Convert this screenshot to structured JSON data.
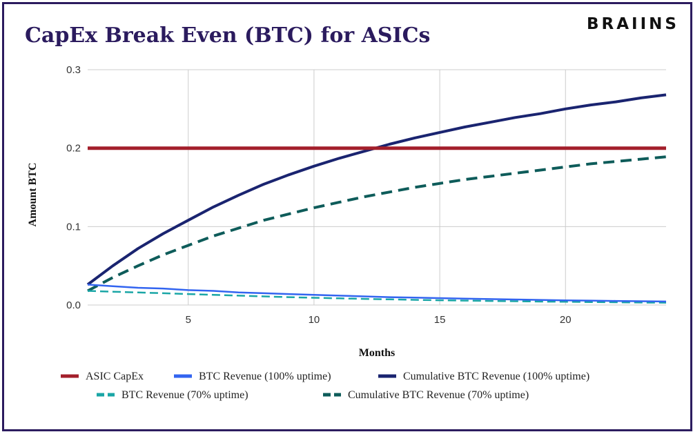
{
  "header": {
    "title": "CapEx Break Even (BTC) for ASICs",
    "logo_text": "BRAIINS"
  },
  "colors": {
    "frame": "#2b1b5e",
    "title": "#2b1b5e",
    "grid": "#cccccc"
  },
  "chart_data": {
    "type": "line",
    "title": "CapEx Break Even (BTC) for ASICs",
    "xlabel": "Months",
    "ylabel": "Amount BTC",
    "xlim": [
      1,
      24
    ],
    "ylim": [
      0,
      0.3
    ],
    "x_ticks": [
      5,
      10,
      15,
      20
    ],
    "y_ticks": [
      0.0,
      0.1,
      0.2,
      0.3
    ],
    "y_tick_labels": [
      "0.0",
      "0.1",
      "0.2",
      "0.3"
    ],
    "grid": true,
    "legend_position": "bottom",
    "x": [
      1,
      2,
      3,
      4,
      5,
      6,
      7,
      8,
      9,
      10,
      11,
      12,
      13,
      14,
      15,
      16,
      17,
      18,
      19,
      20,
      21,
      22,
      23,
      24
    ],
    "series": [
      {
        "name": "ASIC CapEx",
        "color": "#a31f2b",
        "dash": "solid",
        "values": [
          0.2,
          0.2,
          0.2,
          0.2,
          0.2,
          0.2,
          0.2,
          0.2,
          0.2,
          0.2,
          0.2,
          0.2,
          0.2,
          0.2,
          0.2,
          0.2,
          0.2,
          0.2,
          0.2,
          0.2,
          0.2,
          0.2,
          0.2,
          0.2
        ]
      },
      {
        "name": "BTC Revenue (100% uptime)",
        "color": "#3264f0",
        "dash": "solid",
        "values": [
          0.026,
          0.024,
          0.022,
          0.021,
          0.019,
          0.018,
          0.016,
          0.015,
          0.014,
          0.013,
          0.012,
          0.011,
          0.01,
          0.0095,
          0.0088,
          0.0082,
          0.0076,
          0.007,
          0.0065,
          0.006,
          0.0056,
          0.0052,
          0.0048,
          0.0045
        ]
      },
      {
        "name": "Cumulative BTC Revenue (100% uptime)",
        "color": "#1a2470",
        "dash": "solid",
        "values": [
          0.026,
          0.05,
          0.072,
          0.091,
          0.108,
          0.125,
          0.14,
          0.154,
          0.166,
          0.177,
          0.187,
          0.196,
          0.205,
          0.213,
          0.22,
          0.227,
          0.233,
          0.239,
          0.244,
          0.25,
          0.255,
          0.259,
          0.264,
          0.268
        ]
      },
      {
        "name": "BTC Revenue (70% uptime)",
        "color": "#1aa6a6",
        "dash": "dashed",
        "values": [
          0.018,
          0.017,
          0.016,
          0.015,
          0.014,
          0.013,
          0.012,
          0.011,
          0.01,
          0.0092,
          0.0085,
          0.0078,
          0.0072,
          0.0066,
          0.0061,
          0.0056,
          0.0052,
          0.0048,
          0.0044,
          0.0041,
          0.0038,
          0.0035,
          0.0032,
          0.003
        ]
      },
      {
        "name": "Cumulative BTC Revenue (70% uptime)",
        "color": "#0e5c5a",
        "dash": "dashed",
        "values": [
          0.018,
          0.035,
          0.05,
          0.064,
          0.076,
          0.088,
          0.098,
          0.108,
          0.116,
          0.124,
          0.131,
          0.138,
          0.144,
          0.15,
          0.155,
          0.16,
          0.164,
          0.168,
          0.172,
          0.176,
          0.18,
          0.183,
          0.186,
          0.189
        ]
      }
    ]
  }
}
